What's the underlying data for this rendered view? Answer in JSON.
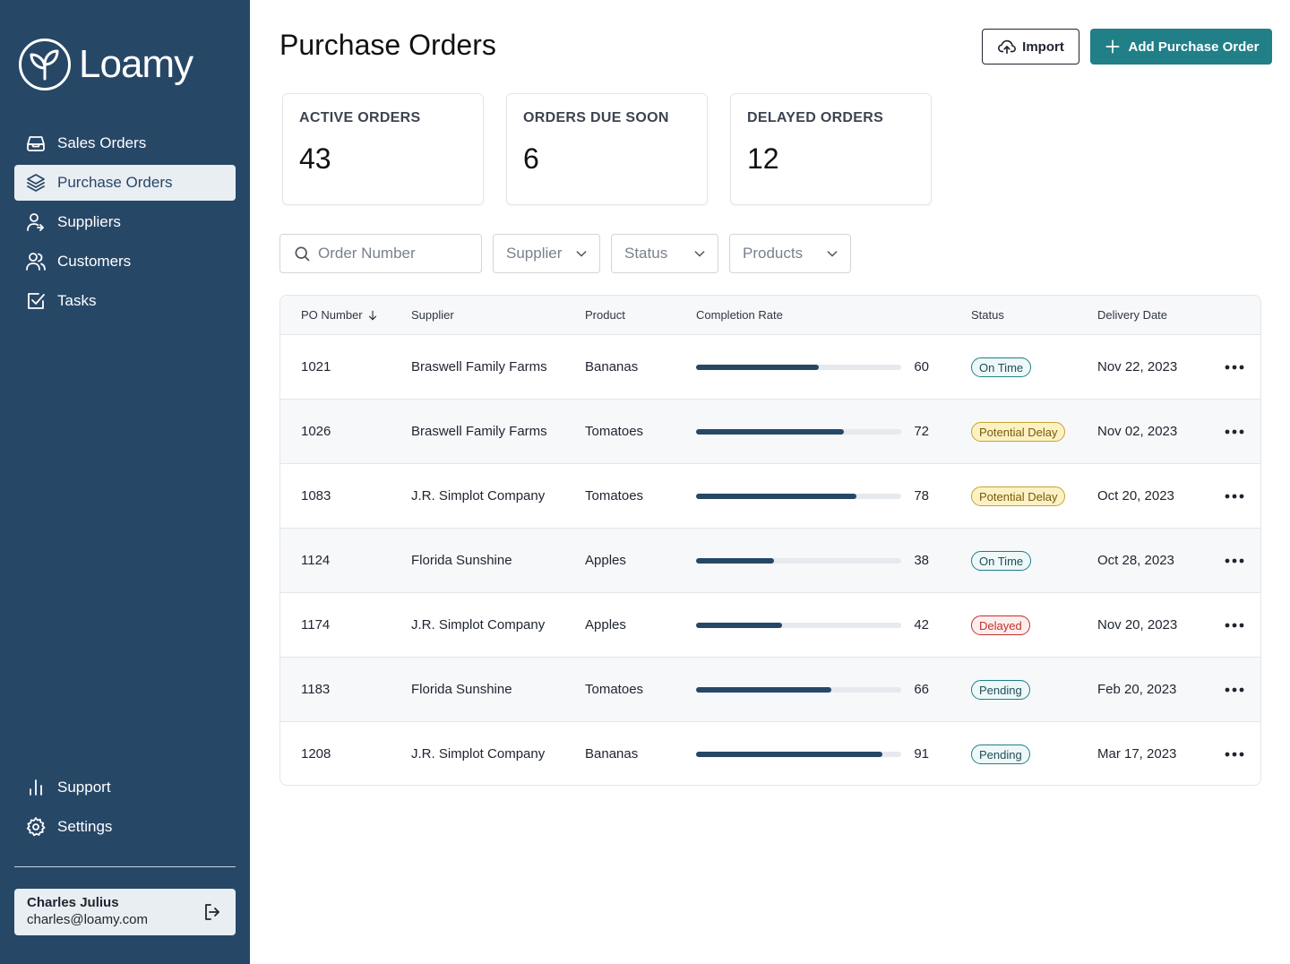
{
  "brand": {
    "name": "Loamy"
  },
  "sidebar": {
    "items": [
      {
        "label": "Sales Orders",
        "icon": "inbox-icon"
      },
      {
        "label": "Purchase Orders",
        "icon": "layers-icon",
        "active": true
      },
      {
        "label": "Suppliers",
        "icon": "user-arrow-icon"
      },
      {
        "label": "Customers",
        "icon": "users-icon"
      },
      {
        "label": "Tasks",
        "icon": "checkbox-icon"
      }
    ],
    "bottom_items": [
      {
        "label": "Support",
        "icon": "bar-chart-icon"
      },
      {
        "label": "Settings",
        "icon": "gear-icon"
      }
    ],
    "user": {
      "name": "Charles Julius",
      "email": "charles@loamy.com"
    }
  },
  "header": {
    "title": "Purchase Orders",
    "import_label": "Import",
    "add_label": "Add Purchase Order"
  },
  "stats": [
    {
      "label": "ACTIVE ORDERS",
      "value": "43"
    },
    {
      "label": "ORDERS DUE SOON",
      "value": "6"
    },
    {
      "label": "DELAYED ORDERS",
      "value": "12"
    }
  ],
  "filters": {
    "search_placeholder": "Order Number",
    "supplier": "Supplier",
    "status": "Status",
    "products": "Products"
  },
  "table": {
    "columns": [
      "PO Number",
      "Supplier",
      "Product",
      "Completion Rate",
      "Status",
      "Delivery Date"
    ],
    "rows": [
      {
        "po": "1021",
        "supplier": "Braswell Family Farms",
        "product": "Bananas",
        "completion": 60,
        "status": "On Time",
        "status_type": "ontime",
        "date": "Nov 22, 2023"
      },
      {
        "po": "1026",
        "supplier": "Braswell Family Farms",
        "product": "Tomatoes",
        "completion": 72,
        "status": "Potential Delay",
        "status_type": "potential",
        "date": "Nov 02, 2023"
      },
      {
        "po": "1083",
        "supplier": "J.R. Simplot Company",
        "product": "Tomatoes",
        "completion": 78,
        "status": "Potential Delay",
        "status_type": "potential",
        "date": "Oct 20, 2023"
      },
      {
        "po": "1124",
        "supplier": "Florida Sunshine",
        "product": "Apples",
        "completion": 38,
        "status": "On Time",
        "status_type": "ontime",
        "date": "Oct 28, 2023"
      },
      {
        "po": "1174",
        "supplier": "J.R. Simplot Company",
        "product": "Apples",
        "completion": 42,
        "status": "Delayed",
        "status_type": "delayed",
        "date": "Nov 20, 2023"
      },
      {
        "po": "1183",
        "supplier": "Florida Sunshine",
        "product": "Tomatoes",
        "completion": 66,
        "status": "Pending",
        "status_type": "pending",
        "date": "Feb 20, 2023"
      },
      {
        "po": "1208",
        "supplier": "J.R. Simplot Company",
        "product": "Bananas",
        "completion": 91,
        "status": "Pending",
        "status_type": "pending",
        "date": "Mar 17, 2023"
      }
    ]
  },
  "colors": {
    "sidebar_bg": "#274767",
    "accent": "#217f87",
    "bar_fill": "#274767"
  }
}
